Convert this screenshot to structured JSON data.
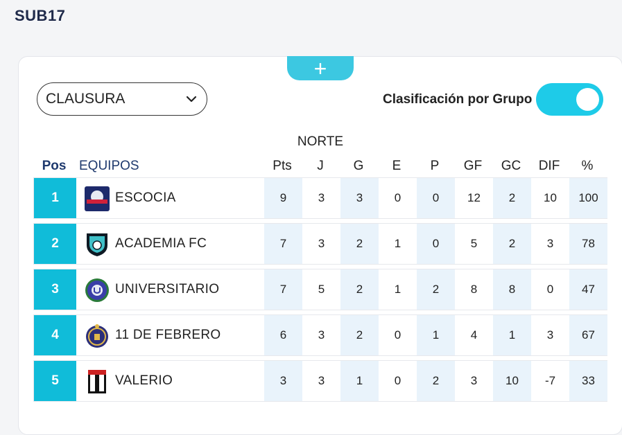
{
  "page": {
    "title": "SUB17"
  },
  "add_button": {
    "label": "+"
  },
  "tournament_select": {
    "value": "CLAUSURA"
  },
  "group_toggle": {
    "label": "Clasificación por Grupo",
    "on": true
  },
  "table": {
    "group_name": "NORTE",
    "headers": {
      "pos": "Pos",
      "team": "EQUIPOS",
      "pts": "Pts",
      "j": "J",
      "g": "G",
      "e": "E",
      "p": "P",
      "gf": "GF",
      "gc": "GC",
      "dif": "DIF",
      "pct": "%"
    },
    "rows": [
      {
        "pos": "1",
        "team": "ESCOCIA",
        "pts": "9",
        "j": "3",
        "g": "3",
        "e": "0",
        "p": "0",
        "gf": "12",
        "gc": "2",
        "dif": "10",
        "pct": "100",
        "logo": "escocia-logo"
      },
      {
        "pos": "2",
        "team": "ACADEMIA FC",
        "pts": "7",
        "j": "3",
        "g": "2",
        "e": "1",
        "p": "0",
        "gf": "5",
        "gc": "2",
        "dif": "3",
        "pct": "78",
        "logo": "academia-fc-logo"
      },
      {
        "pos": "3",
        "team": "UNIVERSITARIO",
        "pts": "7",
        "j": "5",
        "g": "2",
        "e": "1",
        "p": "2",
        "gf": "8",
        "gc": "8",
        "dif": "0",
        "pct": "47",
        "logo": "universitario-logo"
      },
      {
        "pos": "4",
        "team": "11 DE FEBRERO",
        "pts": "6",
        "j": "3",
        "g": "2",
        "e": "0",
        "p": "1",
        "gf": "4",
        "gc": "1",
        "dif": "3",
        "pct": "67",
        "logo": "11-de-febrero-logo"
      },
      {
        "pos": "5",
        "team": "VALERIO",
        "pts": "3",
        "j": "3",
        "g": "1",
        "e": "0",
        "p": "2",
        "gf": "3",
        "gc": "10",
        "dif": "-7",
        "pct": "33",
        "logo": "valerio-logo"
      }
    ]
  },
  "colors": {
    "accent": "#10bcd9",
    "toggle": "#1ecbe8",
    "add_button": "#3cc8e1",
    "column_shade": "#e9f3fb",
    "header_blue": "#1f3a6e"
  }
}
